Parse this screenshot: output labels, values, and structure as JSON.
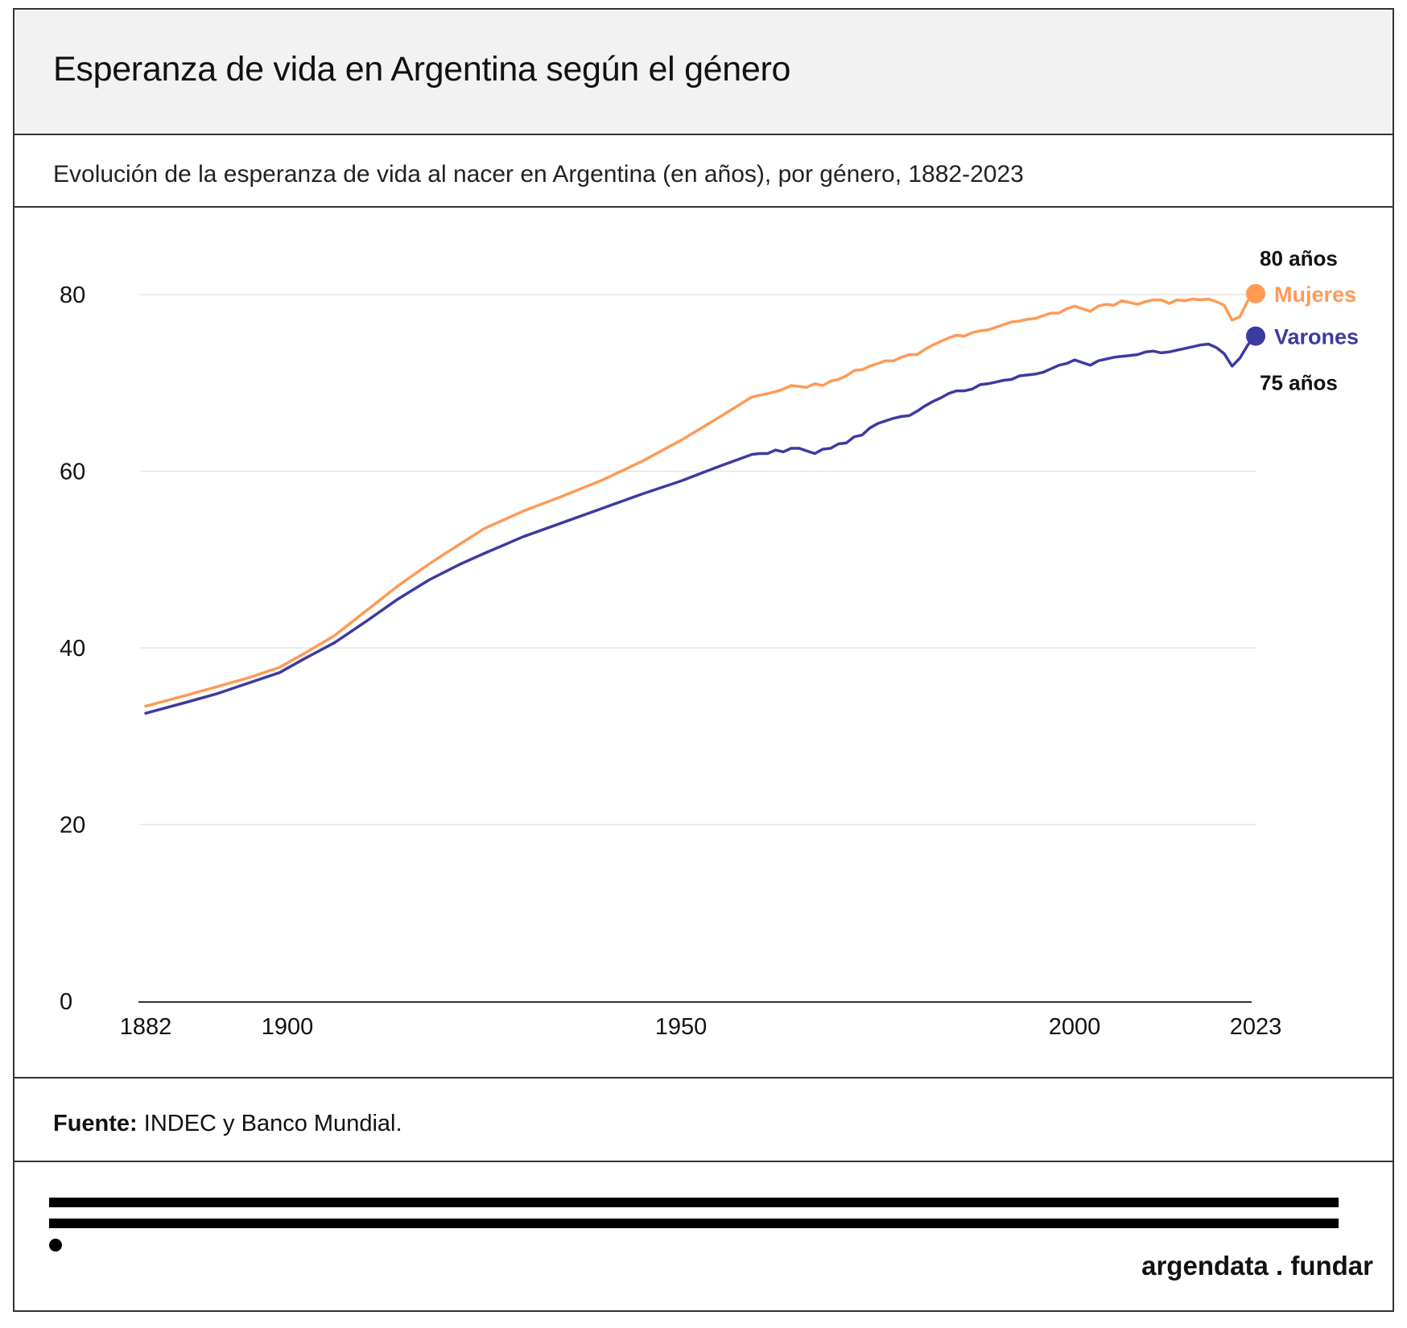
{
  "header": {
    "title": "Esperanza de vida en Argentina según el género",
    "subtitle": "Evolución de la esperanza de vida al nacer en Argentina (en años), por género, 1882-2023"
  },
  "footer": {
    "source_label": "Fuente:",
    "source_text": " INDEC y Banco Mundial.",
    "brand": "argendata . fundar"
  },
  "colors": {
    "mujeres": "#FF9A55",
    "varones": "#3D3AA0",
    "grid": "#e6e6e6",
    "axis": "#333333"
  },
  "chart_data": {
    "type": "line",
    "xlim": [
      1882,
      2023
    ],
    "ylim": [
      0,
      80
    ],
    "x_ticks": [
      1882,
      1900,
      1950,
      2000,
      2023
    ],
    "y_ticks": [
      0,
      20,
      40,
      60,
      80
    ],
    "legend": "end-of-line labels",
    "annotations": [
      {
        "series": "Mujeres",
        "text": "80 años"
      },
      {
        "series": "Varones",
        "text": "75 años"
      }
    ],
    "series": [
      {
        "name": "Mujeres",
        "color": "#FF9A55",
        "x": [
          1882,
          1887,
          1891,
          1895,
          1899,
          1902,
          1906,
          1909,
          1914,
          1918,
          1922,
          1925,
          1930,
          1935,
          1940,
          1945,
          1950,
          1955,
          1959,
          1960,
          1961,
          1962,
          1963,
          1964,
          1965,
          1966,
          1967,
          1968,
          1969,
          1970,
          1971,
          1972,
          1973,
          1974,
          1975,
          1976,
          1977,
          1978,
          1979,
          1980,
          1981,
          1982,
          1983,
          1984,
          1985,
          1986,
          1987,
          1988,
          1989,
          1990,
          1991,
          1992,
          1993,
          1994,
          1995,
          1996,
          1997,
          1998,
          1999,
          2000,
          2001,
          2002,
          2003,
          2004,
          2005,
          2006,
          2007,
          2008,
          2009,
          2010,
          2011,
          2012,
          2013,
          2014,
          2015,
          2016,
          2017,
          2018,
          2019,
          2020,
          2021,
          2022,
          2023
        ],
        "y": [
          33.4,
          34.6,
          35.6,
          36.6,
          37.8,
          39.3,
          41.4,
          43.5,
          47.0,
          49.5,
          51.8,
          53.5,
          55.5,
          57.2,
          59.0,
          61.1,
          63.5,
          66.2,
          68.4,
          68.6,
          68.8,
          69.0,
          69.3,
          69.7,
          69.6,
          69.5,
          69.9,
          69.7,
          70.2,
          70.4,
          70.8,
          71.4,
          71.5,
          71.9,
          72.2,
          72.5,
          72.5,
          72.9,
          73.2,
          73.2,
          73.8,
          74.3,
          74.7,
          75.1,
          75.4,
          75.3,
          75.7,
          75.9,
          76.0,
          76.3,
          76.6,
          76.9,
          77.0,
          77.2,
          77.3,
          77.6,
          77.9,
          77.9,
          78.4,
          78.7,
          78.4,
          78.1,
          78.7,
          78.9,
          78.8,
          79.3,
          79.1,
          78.9,
          79.2,
          79.4,
          79.4,
          79.0,
          79.4,
          79.3,
          79.5,
          79.4,
          79.5,
          79.2,
          78.8,
          77.1,
          77.5,
          79.3,
          80.1
        ]
      },
      {
        "name": "Varones",
        "color": "#3D3AA0",
        "x": [
          1882,
          1887,
          1891,
          1895,
          1899,
          1902,
          1906,
          1910,
          1914,
          1918,
          1922,
          1925,
          1930,
          1935,
          1940,
          1945,
          1950,
          1955,
          1959,
          1960,
          1961,
          1962,
          1963,
          1964,
          1965,
          1966,
          1967,
          1968,
          1969,
          1970,
          1971,
          1972,
          1973,
          1974,
          1975,
          1976,
          1977,
          1978,
          1979,
          1980,
          1981,
          1982,
          1983,
          1984,
          1985,
          1986,
          1987,
          1988,
          1989,
          1990,
          1991,
          1992,
          1993,
          1994,
          1995,
          1996,
          1997,
          1998,
          1999,
          2000,
          2001,
          2002,
          2003,
          2004,
          2005,
          2006,
          2007,
          2008,
          2009,
          2010,
          2011,
          2012,
          2013,
          2014,
          2015,
          2016,
          2017,
          2018,
          2019,
          2020,
          2021,
          2022,
          2023
        ],
        "y": [
          32.6,
          33.8,
          34.8,
          36.0,
          37.2,
          38.7,
          40.6,
          43.0,
          45.5,
          47.7,
          49.5,
          50.7,
          52.6,
          54.2,
          55.8,
          57.4,
          58.9,
          60.6,
          61.9,
          62.0,
          62.0,
          62.4,
          62.2,
          62.6,
          62.6,
          62.3,
          62.0,
          62.5,
          62.6,
          63.1,
          63.2,
          63.9,
          64.1,
          64.9,
          65.4,
          65.7,
          66.0,
          66.2,
          66.3,
          66.8,
          67.4,
          67.9,
          68.3,
          68.8,
          69.1,
          69.1,
          69.3,
          69.8,
          69.9,
          70.1,
          70.3,
          70.4,
          70.8,
          70.9,
          71.0,
          71.2,
          71.6,
          72.0,
          72.2,
          72.6,
          72.3,
          72.0,
          72.5,
          72.7,
          72.9,
          73.0,
          73.1,
          73.2,
          73.5,
          73.6,
          73.4,
          73.5,
          73.7,
          73.9,
          74.1,
          74.3,
          74.4,
          74.0,
          73.3,
          71.9,
          72.8,
          74.3,
          75.3
        ]
      }
    ]
  }
}
